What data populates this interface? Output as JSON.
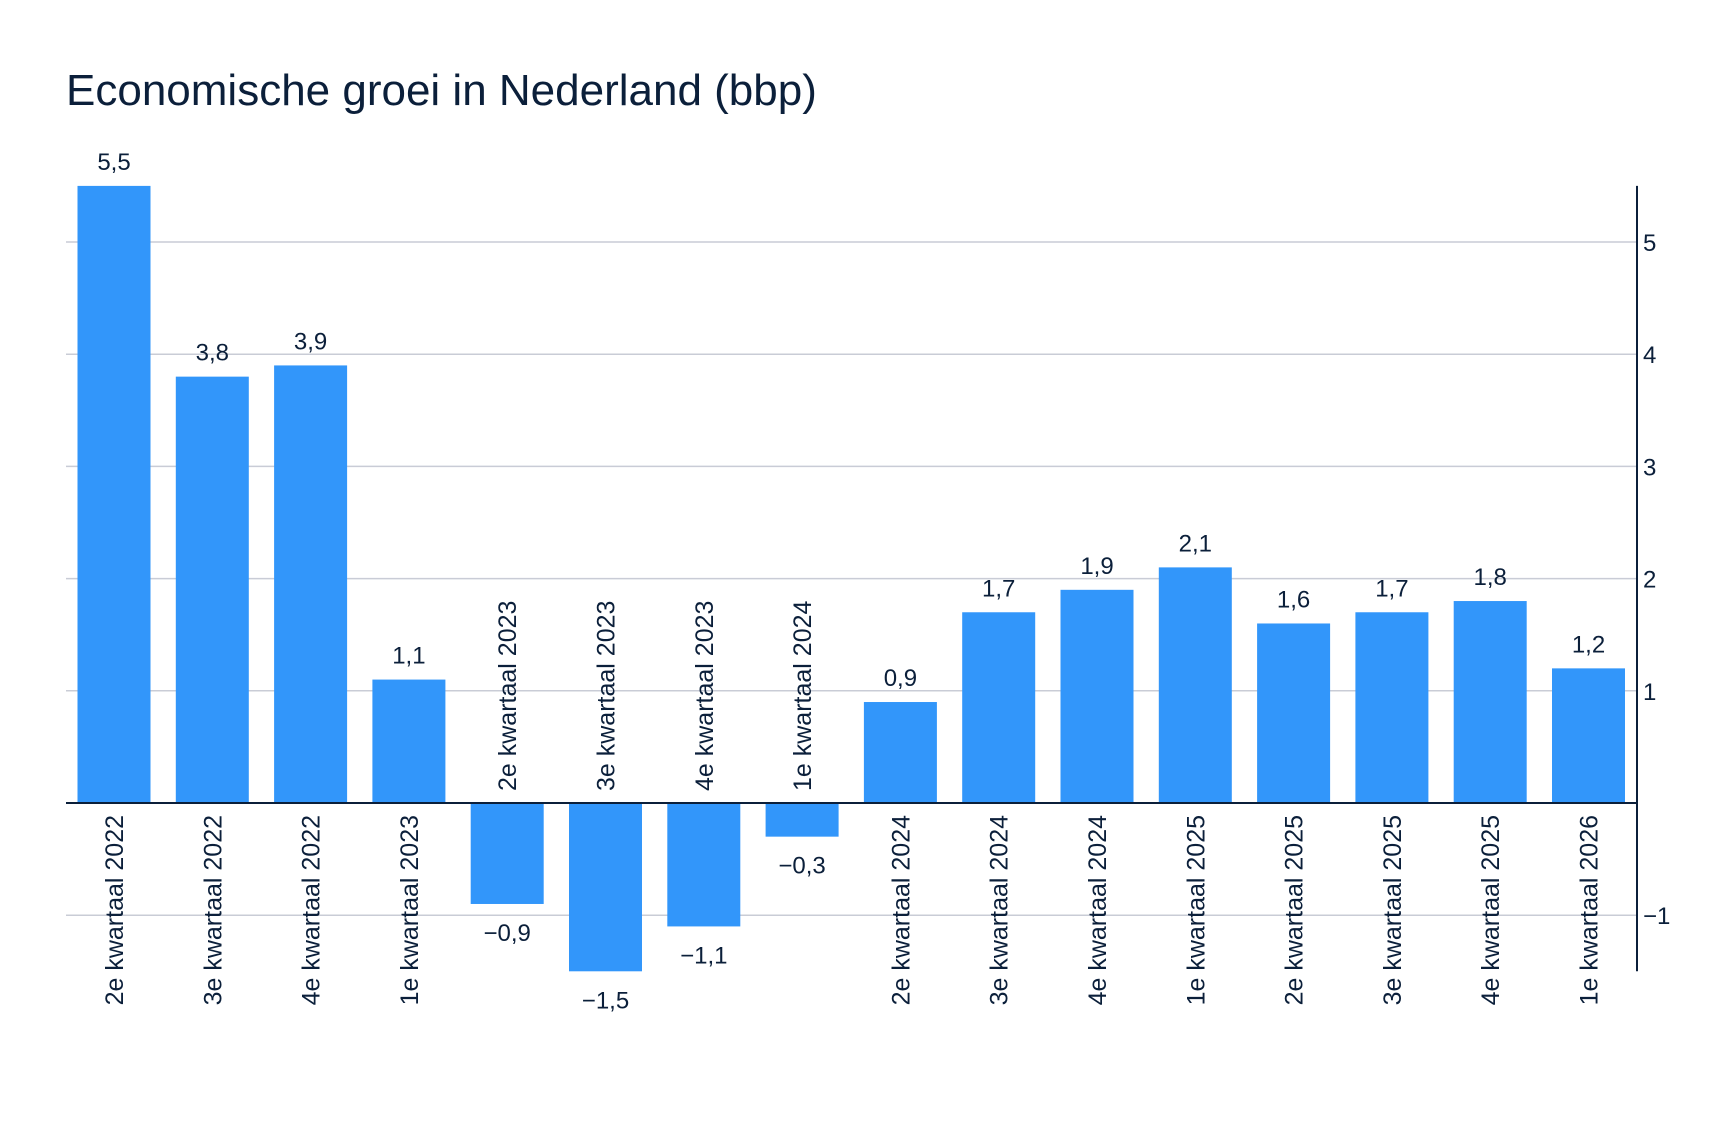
{
  "chart_data": {
    "type": "bar",
    "title": "Economische groei in Nederland (bbp)",
    "categories": [
      "2e kwartaal 2022",
      "3e kwartaal 2022",
      "4e kwartaal 2022",
      "1e kwartaal 2023",
      "2e kwartaal 2023",
      "3e kwartaal 2023",
      "4e kwartaal 2023",
      "1e kwartaal 2024",
      "2e kwartaal 2024",
      "3e kwartaal 2024",
      "4e kwartaal 2024",
      "1e kwartaal 2025",
      "2e kwartaal 2025",
      "3e kwartaal 2025",
      "4e kwartaal 2025",
      "1e kwartaal 2026"
    ],
    "values": [
      5.5,
      3.8,
      3.9,
      1.1,
      -0.9,
      -1.5,
      -1.1,
      -0.3,
      0.9,
      1.7,
      1.9,
      2.1,
      1.6,
      1.7,
      1.8,
      1.2
    ],
    "value_labels": [
      "5,5",
      "3,8",
      "3,9",
      "1,1",
      "−0,9",
      "−1,5",
      "−1,1",
      "−0,3",
      "0,9",
      "1,7",
      "1,9",
      "2,1",
      "1,6",
      "1,7",
      "1,8",
      "1,2"
    ],
    "ylim": [
      -1.5,
      5.5
    ],
    "y_ticks": [
      -1,
      1,
      2,
      3,
      4,
      5
    ],
    "y_tick_labels": [
      "−1",
      "1",
      "2",
      "3",
      "4",
      "5"
    ],
    "y_axis_side": "right",
    "grid": true,
    "xlabel": "",
    "ylabel": "",
    "colors": {
      "bar": "#3296fa",
      "grid": "#c9ccd6",
      "axis": "#0b1f3a",
      "text": "#0b1f3a"
    }
  }
}
